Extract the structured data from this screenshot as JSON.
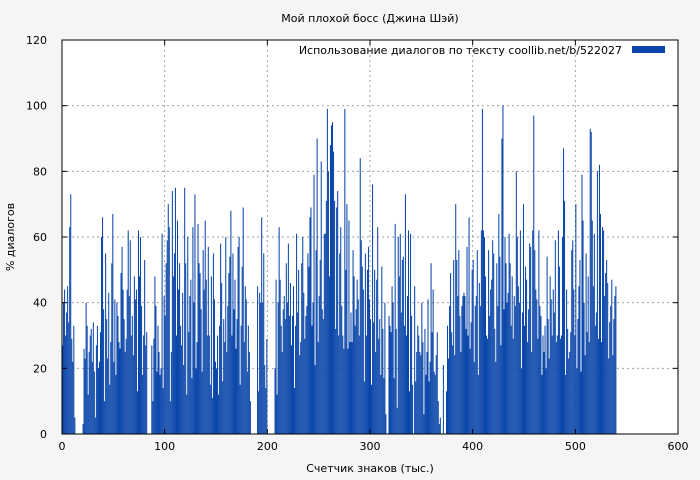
{
  "chart_data": {
    "type": "bar",
    "title": "Мой плохой босс (Джина Шэй)",
    "xlabel": "Счетчик знаков (тыс.)",
    "ylabel": "% диалогов",
    "xlim": [
      0,
      600
    ],
    "ylim": [
      0,
      120
    ],
    "xticks": [
      "0",
      "100",
      "200",
      "300",
      "400",
      "500",
      "600"
    ],
    "yticks": [
      "0",
      "20",
      "40",
      "60",
      "80",
      "100",
      "120"
    ],
    "grid": true,
    "legend_position": "top-right",
    "bar_color": "#0a46aa",
    "series": [
      {
        "name": "Использование диалогов по тексту  coollib.net/b/522027",
        "x_step": 1,
        "values": [
          27,
          40,
          44,
          30,
          37,
          45,
          34,
          63,
          73,
          29,
          22,
          33,
          5,
          0,
          0,
          0,
          0,
          0,
          0,
          0,
          3,
          26,
          23,
          40,
          33,
          12,
          25,
          30,
          32,
          22,
          34,
          19,
          5,
          27,
          33,
          20,
          22,
          31,
          60,
          66,
          38,
          10,
          55,
          35,
          23,
          43,
          15,
          28,
          52,
          67,
          22,
          41,
          18,
          40,
          36,
          28,
          26,
          49,
          57,
          44,
          35,
          25,
          29,
          44,
          62,
          42,
          59,
          30,
          36,
          24,
          48,
          41,
          44,
          13,
          62,
          48,
          60,
          39,
          18,
          30,
          53,
          27,
          31,
          0,
          0,
          0,
          0,
          27,
          10,
          29,
          48,
          39,
          19,
          33,
          25,
          18,
          20,
          61,
          14,
          42,
          36,
          52,
          59,
          70,
          63,
          10,
          25,
          74,
          48,
          55,
          75,
          30,
          65,
          44,
          52,
          33,
          27,
          43,
          21,
          75,
          52,
          12,
          60,
          31,
          42,
          47,
          17,
          63,
          40,
          73,
          20,
          28,
          64,
          52,
          49,
          38,
          19,
          56,
          44,
          65,
          47,
          30,
          57,
          30,
          15,
          48,
          11,
          55,
          41,
          22,
          20,
          30,
          12,
          33,
          58,
          46,
          16,
          35,
          28,
          60,
          25,
          39,
          49,
          54,
          68,
          30,
          55,
          38,
          47,
          26,
          35,
          57,
          60,
          15,
          33,
          51,
          69,
          28,
          45,
          41,
          19,
          33,
          25,
          10,
          0,
          0,
          0,
          0,
          0,
          0,
          45,
          13,
          43,
          40,
          66,
          40,
          55,
          21,
          14,
          29,
          0,
          0,
          0,
          0,
          0,
          0,
          0,
          20,
          47,
          12,
          40,
          63,
          47,
          33,
          25,
          38,
          42,
          35,
          52,
          40,
          58,
          36,
          46,
          27,
          36,
          45,
          14,
          33,
          61,
          37,
          50,
          24,
          28,
          52,
          60,
          43,
          29,
          36,
          39,
          55,
          51,
          66,
          69,
          33,
          40,
          79,
          21,
          56,
          90,
          28,
          42,
          53,
          83,
          38,
          35,
          61,
          61,
          71,
          99,
          80,
          48,
          88,
          94,
          95,
          86,
          71,
          32,
          69,
          74,
          30,
          55,
          63,
          39,
          30,
          26,
          99,
          50,
          70,
          26,
          65,
          28,
          37,
          28,
          56,
          48,
          33,
          38,
          47,
          41,
          30,
          84,
          59,
          51,
          44,
          16,
          55,
          30,
          50,
          57,
          41,
          35,
          15,
          76,
          34,
          50,
          25,
          47,
          63,
          29,
          35,
          18,
          51,
          32,
          17,
          40,
          6,
          0,
          0,
          36,
          33,
          31,
          45,
          40,
          17,
          64,
          32,
          8,
          60,
          48,
          61,
          37,
          53,
          54,
          33,
          73,
          30,
          42,
          62,
          13,
          61,
          36,
          15,
          0,
          45,
          16,
          25,
          33,
          30,
          25,
          24,
          40,
          28,
          6,
          32,
          18,
          25,
          41,
          16,
          22,
          52,
          31,
          44,
          19,
          18,
          24,
          31,
          10,
          3,
          5,
          0,
          0,
          21,
          0,
          0,
          13,
          33,
          23,
          39,
          49,
          31,
          27,
          53,
          24,
          70,
          53,
          42,
          56,
          36,
          25,
          39,
          42,
          43,
          42,
          32,
          57,
          30,
          66,
          26,
          34,
          50,
          53,
          22,
          39,
          42,
          56,
          18,
          46,
          39,
          62,
          99,
          62,
          60,
          48,
          30,
          29,
          56,
          36,
          44,
          47,
          59,
          55,
          32,
          22,
          52,
          39,
          67,
          54,
          27,
          90,
          100,
          38,
          60,
          52,
          40,
          43,
          61,
          52,
          33,
          48,
          29,
          42,
          39,
          80,
          60,
          45,
          40,
          62,
          20,
          37,
          70,
          33,
          51,
          47,
          28,
          38,
          58,
          57,
          25,
          62,
          97,
          56,
          44,
          41,
          29,
          62,
          39,
          36,
          18,
          30,
          25,
          33,
          20,
          54,
          35,
          23,
          48,
          41,
          30,
          44,
          37,
          59,
          28,
          30,
          62,
          51,
          29,
          30,
          60,
          87,
          71,
          18,
          44,
          32,
          23,
          25,
          31,
          56,
          59,
          44,
          30,
          70,
          20,
          35,
          45,
          53,
          19,
          79,
          65,
          40,
          24,
          55,
          31,
          48,
          28,
          93,
          92,
          65,
          45,
          61,
          33,
          37,
          80,
          29,
          82,
          67,
          28,
          63,
          62,
          42,
          49,
          53,
          46,
          23,
          34,
          39,
          47,
          24,
          35,
          42,
          45
        ]
      }
    ]
  }
}
